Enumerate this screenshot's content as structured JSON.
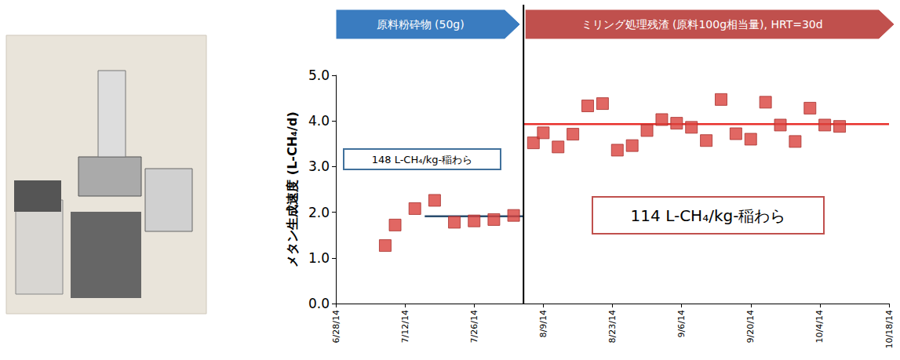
{
  "chart_data": {
    "type": "scatter",
    "y_label": "メタン生成速度 (L-CH₄/d)",
    "ylim": [
      0,
      5
    ],
    "yticks": [
      {
        "value": 0,
        "label": "0.0"
      },
      {
        "value": 1,
        "label": "1.0"
      },
      {
        "value": 2,
        "label": "2.0"
      },
      {
        "value": 3,
        "label": "3.0"
      },
      {
        "value": 4,
        "label": "4.0"
      },
      {
        "value": 5,
        "label": "5.0"
      }
    ],
    "xlim": [
      "2014-06-28",
      "2014-10-18"
    ],
    "xticks": [
      {
        "value": "2014-06-28",
        "label": "6/28/14"
      },
      {
        "value": "2014-07-12",
        "label": "7/12/14"
      },
      {
        "value": "2014-07-26",
        "label": "7/26/14"
      },
      {
        "value": "2014-08-09",
        "label": "8/9/14"
      },
      {
        "value": "2014-08-23",
        "label": "8/23/14"
      },
      {
        "value": "2014-09-06",
        "label": "9/6/14"
      },
      {
        "value": "2014-09-20",
        "label": "9/20/14"
      },
      {
        "value": "2014-10-04",
        "label": "10/4/14"
      },
      {
        "value": "2014-10-18",
        "label": "10/18/14"
      }
    ],
    "grid": false,
    "series": [
      {
        "type": "scatter",
        "color": "#d9413c",
        "marker": "square",
        "x": [
          "2014-07-08",
          "2014-07-10",
          "2014-07-14",
          "2014-07-18",
          "2014-07-22",
          "2014-07-26",
          "2014-07-30",
          "2014-08-03",
          "2014-08-07",
          "2014-08-09",
          "2014-08-12",
          "2014-08-15",
          "2014-08-18",
          "2014-08-21",
          "2014-08-24",
          "2014-08-27",
          "2014-08-30",
          "2014-09-02",
          "2014-09-05",
          "2014-09-08",
          "2014-09-11",
          "2014-09-14",
          "2014-09-17",
          "2014-09-20",
          "2014-09-23",
          "2014-09-26",
          "2014-09-29",
          "2014-10-02",
          "2014-10-05",
          "2014-10-08"
        ],
        "values": [
          1.27,
          1.72,
          2.08,
          2.26,
          1.78,
          1.81,
          1.84,
          1.93,
          3.52,
          3.74,
          3.43,
          3.71,
          4.33,
          4.38,
          3.36,
          3.46,
          3.79,
          4.03,
          3.95,
          3.86,
          3.57,
          4.47,
          3.72,
          3.6,
          4.41,
          3.91,
          3.55,
          4.28,
          3.91,
          3.88
        ]
      },
      {
        "type": "line",
        "color": "#2a4d6e",
        "line_style": "solid",
        "x": [
          "2014-07-16",
          "2014-08-05"
        ],
        "values": [
          1.91,
          1.91
        ]
      },
      {
        "type": "line",
        "color": "#e8302c",
        "line_style": "solid",
        "x": [
          "2014-08-05",
          "2014-10-18"
        ],
        "values": [
          3.93,
          3.93
        ]
      }
    ],
    "annotations": [
      {
        "text": "148 L-CH₄/kg-稲わら",
        "color": "#41719c"
      },
      {
        "text": "114 L-CH₄/kg-稲わら",
        "color": "#c0504d"
      }
    ],
    "phases": [
      {
        "label": "原料粉砕物 (50g)",
        "start": "2014-06-28",
        "end": "2014-08-05",
        "color": "#3a7cc0"
      },
      {
        "label": "ミリング処理残渣 (原料100g相当量), HRT=30d",
        "start": "2014-08-05",
        "end": "2014-10-18",
        "color": "#c0504d"
      }
    ]
  }
}
